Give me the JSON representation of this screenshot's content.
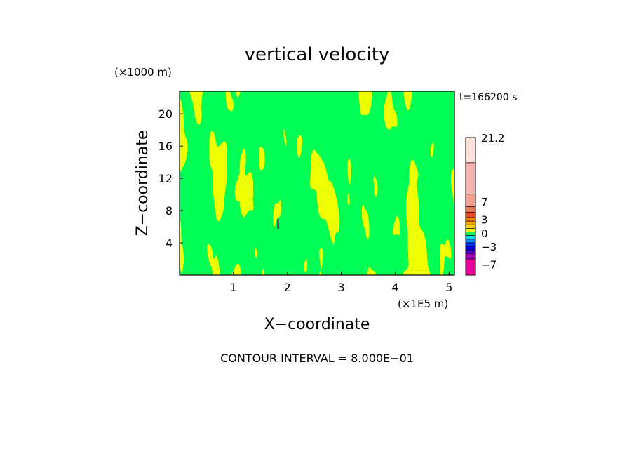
{
  "chart_data": {
    "type": "heatmap",
    "title": "vertical velocity",
    "xlabel": "X−coordinate",
    "ylabel": "Z−coordinate",
    "x_unit": "(×1E5 m)",
    "y_unit": "(×1000 m)",
    "time_label": "t=166200 s",
    "footer": "CONTOUR INTERVAL = 8.000E−01",
    "xlim": [
      0,
      5.1
    ],
    "ylim": [
      0,
      22.8
    ],
    "x_ticks": [
      1,
      2,
      3,
      4,
      5
    ],
    "y_ticks": [
      4,
      8,
      12,
      16,
      20
    ],
    "grid": false,
    "legend": "right colorbar",
    "background_color": "#eeff00",
    "pattern_color": "#00ff55",
    "colorbar": {
      "labels": [
        {
          "value": -7,
          "text": "−7"
        },
        {
          "value": -3,
          "text": "−3"
        },
        {
          "value": 0,
          "text": "0"
        },
        {
          "value": 3,
          "text": "3"
        },
        {
          "value": 7,
          "text": "7"
        },
        {
          "value": 21.2,
          "text": "21.2"
        }
      ],
      "bands": [
        {
          "color": "#e8009a",
          "from": -9.4,
          "to": -5.8
        },
        {
          "color": "#a200b8",
          "from": -5.8,
          "to": -4.6
        },
        {
          "color": "#4b00c8",
          "from": -4.6,
          "to": -3.8
        },
        {
          "color": "#0000ff",
          "from": -3.8,
          "to": -3.0
        },
        {
          "color": "#0030ff",
          "from": -3.0,
          "to": -2.2
        },
        {
          "color": "#008cff",
          "from": -2.2,
          "to": -1.4
        },
        {
          "color": "#00ddee",
          "from": -1.4,
          "to": -0.6
        },
        {
          "color": "#00ff55",
          "from": -0.6,
          "to": 0.2
        },
        {
          "color": "#eeff00",
          "from": 0.2,
          "to": 1.0
        },
        {
          "color": "#ffd400",
          "from": 1.0,
          "to": 1.8
        },
        {
          "color": "#ffa600",
          "from": 1.8,
          "to": 2.6
        },
        {
          "color": "#ff7a00",
          "from": 2.6,
          "to": 3.4
        },
        {
          "color": "#e84a1a",
          "from": 3.4,
          "to": 4.6
        },
        {
          "color": "#ee7a5a",
          "from": 4.6,
          "to": 5.8
        },
        {
          "color": "#f4a090",
          "from": 5.8,
          "to": 8.6
        },
        {
          "color": "#f6b4b0",
          "from": 8.6,
          "to": 15.6
        },
        {
          "color": "#fde2dc",
          "from": 15.6,
          "to": 21.2
        }
      ]
    }
  }
}
